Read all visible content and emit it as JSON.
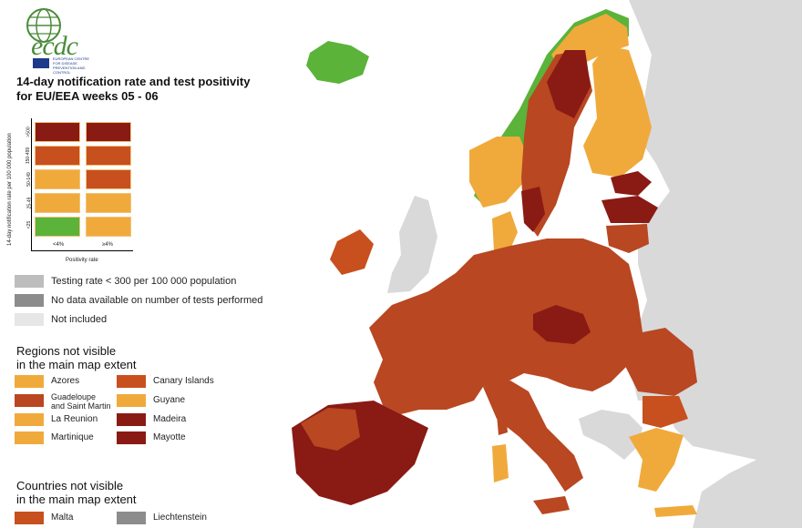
{
  "logo": {
    "text": "ecdc",
    "subtitle": "EUROPEAN CENTRE FOR DISEASE PREVENTION AND CONTROL"
  },
  "title": {
    "line1": "14-day notification rate and test positivity",
    "line2": "for EU/EEA weeks 05 - 06"
  },
  "matrix": {
    "y_label": "14-day notification rate per 100 000 population",
    "x_label": "Positivity rate",
    "y_ticks": [
      ">500",
      "150-499",
      "50-149",
      "25-49",
      "<25"
    ],
    "x_ticks": [
      "<4%",
      "≥4%"
    ],
    "colors": {
      "green": "#5bb33a",
      "light_orange": "#f0aa3c",
      "orange_red": "#c8501e",
      "red_brown": "#b84722",
      "dark_red": "#8a1a14"
    }
  },
  "gray_legend": [
    {
      "label": "Testing rate < 300 per 100 000 population",
      "color": "#bdbdbd"
    },
    {
      "label": "No data available on number of tests performed",
      "color": "#8c8c8c"
    },
    {
      "label": "Not included",
      "color": "#e6e6e6"
    }
  ],
  "regions": {
    "title_line1": "Regions not visible",
    "title_line2": "in the main map extent",
    "items": [
      {
        "label": "Azores",
        "color": "#f0aa3c"
      },
      {
        "label": "Canary Islands",
        "color": "#c8501e"
      },
      {
        "label_line1": "Guadeloupe",
        "label_line2": "and Saint Martin",
        "color": "#b84722"
      },
      {
        "label": "Guyane",
        "color": "#f0aa3c"
      },
      {
        "label": "La Reunion",
        "color": "#f0aa3c"
      },
      {
        "label": "Madeira",
        "color": "#8a1a14"
      },
      {
        "label": "Martinique",
        "color": "#f0aa3c"
      },
      {
        "label": "Mayotte",
        "color": "#8a1a14"
      }
    ]
  },
  "countries": {
    "title_line1": "Countries not visible",
    "title_line2": "in the main map extent",
    "items": [
      {
        "label": "Malta",
        "color": "#c8501e"
      },
      {
        "label": "Liechtenstein",
        "color": "#8c8c8c"
      }
    ]
  }
}
